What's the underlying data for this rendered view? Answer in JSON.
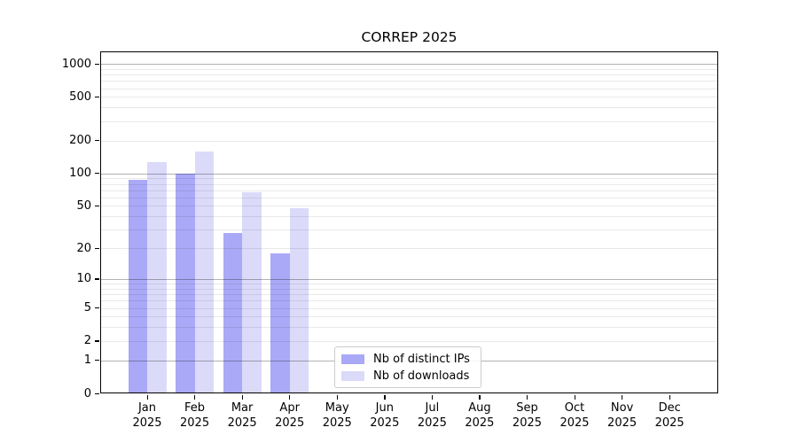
{
  "chart_data": {
    "type": "bar",
    "title": "CORREP 2025",
    "categories": [
      "Jan",
      "Feb",
      "Mar",
      "Apr",
      "May",
      "Jun",
      "Jul",
      "Aug",
      "Sep",
      "Oct",
      "Nov",
      "Dec"
    ],
    "category_year": "2025",
    "series": [
      {
        "name": "Nb of distinct IPs",
        "color": "#a9a9f7",
        "values": [
          87,
          100,
          28,
          18,
          0,
          0,
          0,
          0,
          0,
          0,
          0,
          0
        ]
      },
      {
        "name": "Nb of downloads",
        "color": "#dbdaf9",
        "values": [
          127,
          160,
          67,
          48,
          0,
          0,
          0,
          0,
          0,
          0,
          0,
          0
        ]
      }
    ],
    "xlabel": "",
    "ylabel": "",
    "yaxis": {
      "scale": "log1p",
      "tick_values": [
        1000,
        500,
        200,
        100,
        50,
        20,
        10,
        5,
        2,
        1,
        0
      ],
      "major_grid_values": [
        1,
        10,
        100,
        1000
      ],
      "minor_grid_values": [
        2,
        3,
        4,
        5,
        6,
        7,
        8,
        9,
        20,
        30,
        40,
        50,
        60,
        70,
        80,
        90,
        200,
        300,
        400,
        500,
        600,
        700,
        800,
        900
      ],
      "ylim": [
        0,
        1300
      ]
    },
    "grid": true,
    "legend": {
      "position": "lower-center-left",
      "entries": [
        "Nb of distinct IPs",
        "Nb of downloads"
      ]
    },
    "colors": {
      "bar_distinct_ips": "#a9a9f7",
      "bar_downloads": "#dbdaf9",
      "grid_major": "rgba(0,0,0,0.30)",
      "grid_minor": "rgba(0,0,0,0.085)",
      "frame": "#000000",
      "text": "#000000",
      "legend_border": "#cccccc"
    }
  }
}
